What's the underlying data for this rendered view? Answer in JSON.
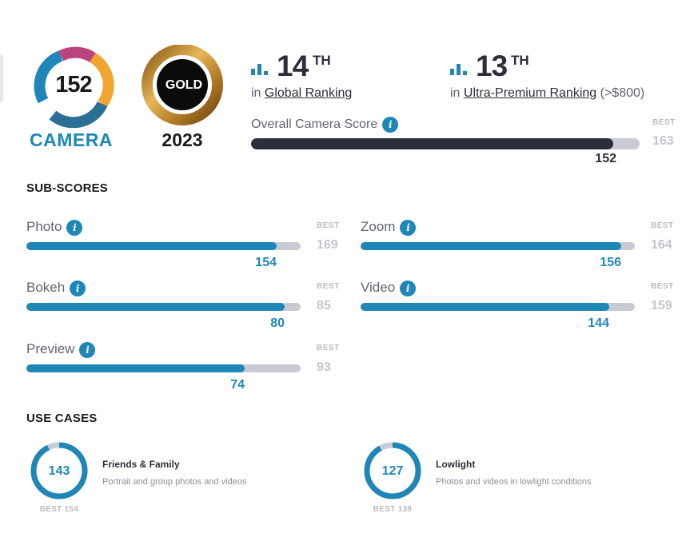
{
  "badges": {
    "camera": {
      "score": "152",
      "label": "CAMERA"
    },
    "award": {
      "text": "GOLD",
      "year": "2023"
    }
  },
  "rankings": {
    "global": {
      "number": "14",
      "suffix": "TH",
      "prefix": "in",
      "link": "Global Ranking",
      "extra": ""
    },
    "segment": {
      "number": "13",
      "suffix": "TH",
      "prefix": "in",
      "link": "Ultra-Premium Ranking",
      "extra": "(>$800)"
    }
  },
  "overall": {
    "label": "Overall Camera Score",
    "best_label": "BEST",
    "best": 163,
    "score": 152
  },
  "subscores": {
    "title": "SUB-SCORES",
    "best_label": "BEST",
    "items": [
      {
        "label": "Photo",
        "score": 154,
        "best": 169
      },
      {
        "label": "Zoom",
        "score": 156,
        "best": 164
      },
      {
        "label": "Bokeh",
        "score": 80,
        "best": 85
      },
      {
        "label": "Video",
        "score": 144,
        "best": 159
      },
      {
        "label": "Preview",
        "score": 74,
        "best": 93
      }
    ]
  },
  "use_cases": {
    "title": "USE CASES",
    "items": [
      {
        "score": "143",
        "best": "BEST 154",
        "title": "Friends & Family",
        "description": "Portrait and group photos and videos",
        "fraction": 0.9286
      },
      {
        "score": "127",
        "best": "BEST 138",
        "title": "Lowlight",
        "description": "Photos and videos in lowlight conditions",
        "fraction": 0.9203
      }
    ]
  },
  "colors": {
    "accent": "#1f86b8",
    "overall_bar": "#2b2f3a",
    "track": "#c8cad4",
    "gold": "#c9962c"
  },
  "icons": {
    "ranking": "bar-chart-icon",
    "info": "info-icon"
  }
}
